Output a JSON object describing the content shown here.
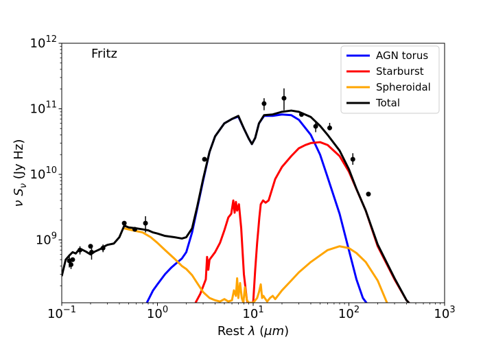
{
  "chart_data": {
    "type": "line",
    "title": "",
    "annotation": "Fritz",
    "xlabel": "Rest λ (μm)",
    "ylabel": "ν S_ν (Jy Hz)",
    "xscale": "log",
    "yscale": "log",
    "xlim": [
      0.1,
      1000
    ],
    "ylim": [
      110000000.0,
      1000000000000.0
    ],
    "x_ticks": [
      {
        "value": 0.1,
        "mant": "10",
        "exp": "−1"
      },
      {
        "value": 1,
        "mant": "10",
        "exp": "0"
      },
      {
        "value": 10,
        "mant": "10",
        "exp": "1"
      },
      {
        "value": 100,
        "mant": "10",
        "exp": "2"
      },
      {
        "value": 1000,
        "mant": "10",
        "exp": "3"
      }
    ],
    "y_ticks": [
      {
        "value": 1000000000.0,
        "mant": "10",
        "exp": "9"
      },
      {
        "value": 10000000000.0,
        "mant": "10",
        "exp": "10"
      },
      {
        "value": 100000000000.0,
        "mant": "10",
        "exp": "11"
      },
      {
        "value": 1000000000000.0,
        "mant": "10",
        "exp": "12"
      }
    ],
    "legend_position": "top-right",
    "series": [
      {
        "name": "AGN torus",
        "color": "#0000ff",
        "x": [
          0.75,
          0.9,
          1.0,
          1.2,
          1.4,
          1.6,
          1.8,
          2.0,
          2.3,
          2.6,
          3.0,
          3.5,
          4.0,
          5.0,
          6.0,
          7.0,
          8.0,
          9.0,
          9.7,
          10.5,
          11.5,
          13,
          16,
          20,
          25,
          30,
          40,
          50,
          60,
          80,
          100,
          120,
          140,
          160
        ],
        "y": [
          100000000.0,
          170000000.0,
          210000000.0,
          300000000.0,
          380000000.0,
          450000000.0,
          520000000.0,
          650000000.0,
          1300000000.0,
          3000000000.0,
          8000000000.0,
          22000000000.0,
          38000000000.0,
          60000000000.0,
          70000000000.0,
          76000000000.0,
          50000000000.0,
          35000000000.0,
          29000000000.0,
          36000000000.0,
          60000000000.0,
          78000000000.0,
          78000000000.0,
          82000000000.0,
          80000000000.0,
          68000000000.0,
          40000000000.0,
          20000000000.0,
          9000000000.0,
          2500000000.0,
          700000000.0,
          250000000.0,
          130000000.0,
          100000000.0
        ]
      },
      {
        "name": "Starburst",
        "color": "#ff0000",
        "x": [
          2.5,
          2.8,
          3.2,
          3.3,
          3.4,
          3.5,
          4.0,
          4.5,
          5.0,
          5.5,
          5.9,
          6.2,
          6.4,
          6.6,
          6.8,
          7.1,
          7.5,
          8.0,
          8.6,
          9.0,
          9.5,
          10.0,
          10.5,
          11.0,
          11.3,
          11.6,
          12.0,
          12.7,
          13.5,
          14.5,
          15.5,
          17,
          20,
          25,
          30,
          35,
          40,
          50,
          60,
          80,
          100,
          150,
          200,
          300,
          400,
          450
        ],
        "y": [
          110000000.0,
          150000000.0,
          250000000.0,
          550000000.0,
          350000000.0,
          500000000.0,
          650000000.0,
          900000000.0,
          1400000000.0,
          2200000000.0,
          2500000000.0,
          4000000000.0,
          2600000000.0,
          3800000000.0,
          2800000000.0,
          3500000000.0,
          1500000000.0,
          300000000.0,
          120000000.0,
          100000000.0,
          100000000.0,
          110000000.0,
          350000000.0,
          900000000.0,
          1400000000.0,
          2200000000.0,
          3500000000.0,
          4000000000.0,
          3700000000.0,
          4000000000.0,
          5500000000.0,
          8500000000.0,
          13000000000.0,
          19000000000.0,
          25000000000.0,
          28000000000.0,
          30000000000.0,
          31000000000.0,
          28000000000.0,
          19000000000.0,
          11000000000.0,
          2800000000.0,
          800000000.0,
          250000000.0,
          120000000.0,
          100000000.0
        ]
      },
      {
        "name": "Spheroidal",
        "color": "#ffa500",
        "x": [
          0.45,
          0.55,
          0.7,
          0.85,
          1.0,
          1.2,
          1.5,
          1.8,
          2.0,
          2.3,
          2.6,
          3.0,
          3.5,
          4.0,
          4.5,
          5.0,
          5.5,
          6.0,
          6.3,
          6.6,
          6.8,
          7.0,
          7.3,
          7.6,
          7.9,
          8.2,
          8.6,
          9.0,
          10.0,
          11.0,
          11.5,
          12.0,
          12.4,
          12.8,
          13.2,
          14.0,
          15.0,
          16.0,
          17.0,
          20,
          25,
          30,
          40,
          50,
          60,
          80,
          100,
          120,
          150,
          200,
          250
        ],
        "y": [
          1500000000.0,
          1400000000.0,
          1300000000.0,
          1100000000.0,
          900000000.0,
          700000000.0,
          520000000.0,
          400000000.0,
          360000000.0,
          290000000.0,
          220000000.0,
          160000000.0,
          130000000.0,
          120000000.0,
          115000000.0,
          125000000.0,
          115000000.0,
          120000000.0,
          170000000.0,
          140000000.0,
          260000000.0,
          130000000.0,
          220000000.0,
          130000000.0,
          110000000.0,
          190000000.0,
          120000000.0,
          110000000.0,
          110000000.0,
          130000000.0,
          160000000.0,
          210000000.0,
          130000000.0,
          140000000.0,
          130000000.0,
          115000000.0,
          130000000.0,
          140000000.0,
          125000000.0,
          170000000.0,
          240000000.0,
          320000000.0,
          460000000.0,
          580000000.0,
          700000000.0,
          800000000.0,
          750000000.0,
          630000000.0,
          460000000.0,
          240000000.0,
          110000000.0
        ]
      },
      {
        "name": "Total",
        "color": "#000000",
        "x": [
          0.1,
          0.11,
          0.12,
          0.13,
          0.14,
          0.15,
          0.16,
          0.18,
          0.2,
          0.22,
          0.25,
          0.28,
          0.3,
          0.35,
          0.4,
          0.45,
          0.5,
          0.6,
          0.7,
          0.8,
          0.9,
          1.0,
          1.2,
          1.5,
          1.8,
          2.0,
          2.3,
          2.6,
          3.0,
          3.5,
          4.0,
          5.0,
          6.0,
          7.0,
          8.0,
          9.0,
          9.7,
          10.5,
          11.5,
          13,
          16,
          20,
          25,
          30,
          40,
          50,
          60,
          80,
          100,
          120,
          150,
          200,
          300,
          400,
          450
        ],
        "y": [
          280000000.0,
          500000000.0,
          580000000.0,
          650000000.0,
          620000000.0,
          700000000.0,
          720000000.0,
          660000000.0,
          600000000.0,
          660000000.0,
          720000000.0,
          800000000.0,
          840000000.0,
          880000000.0,
          1100000000.0,
          1650000000.0,
          1550000000.0,
          1500000000.0,
          1450000000.0,
          1400000000.0,
          1300000000.0,
          1250000000.0,
          1150000000.0,
          1100000000.0,
          1050000000.0,
          1100000000.0,
          1500000000.0,
          3200000000.0,
          8500000000.0,
          22000000000.0,
          38000000000.0,
          60000000000.0,
          70000000000.0,
          78000000000.0,
          50000000000.0,
          35000000000.0,
          29000000000.0,
          36000000000.0,
          60000000000.0,
          80000000000.0,
          82000000000.0,
          90000000000.0,
          94000000000.0,
          90000000000.0,
          75000000000.0,
          55000000000.0,
          40000000000.0,
          23000000000.0,
          12000000000.0,
          6000000000.0,
          2800000000.0,
          850000000.0,
          260000000.0,
          120000000.0,
          100000000.0
        ]
      }
    ],
    "observed_points": {
      "name": "Observed",
      "color": "#000000",
      "x": [
        0.12,
        0.125,
        0.13,
        0.155,
        0.2,
        0.205,
        0.27,
        0.45,
        0.58,
        0.75,
        3.1,
        13,
        21,
        32,
        45,
        63,
        110,
        160
      ],
      "y": [
        480000000.0,
        420000000.0,
        500000000.0,
        700000000.0,
        800000000.0,
        650000000.0,
        750000000.0,
        1800000000.0,
        1450000000.0,
        1800000000.0,
        17000000000.0,
        120000000000.0,
        145000000000.0,
        82000000000.0,
        54000000000.0,
        51000000000.0,
        17000000000.0,
        5000000000.0
      ],
      "err_lo": [
        100000000.0,
        60000000.0,
        0,
        100000000.0,
        0,
        150000000.0,
        100000000.0,
        0,
        0,
        500000000.0,
        0,
        25000000000.0,
        50000000000.0,
        0,
        10000000000.0,
        0,
        3000000000.0,
        0
      ],
      "err_hi": [
        100000000.0,
        60000000.0,
        0,
        100000000.0,
        0,
        150000000.0,
        100000000.0,
        0,
        0,
        500000000.0,
        0,
        25000000000.0,
        60000000000.0,
        0,
        10000000000.0,
        10000000000.0,
        4000000000.0,
        0
      ]
    }
  }
}
